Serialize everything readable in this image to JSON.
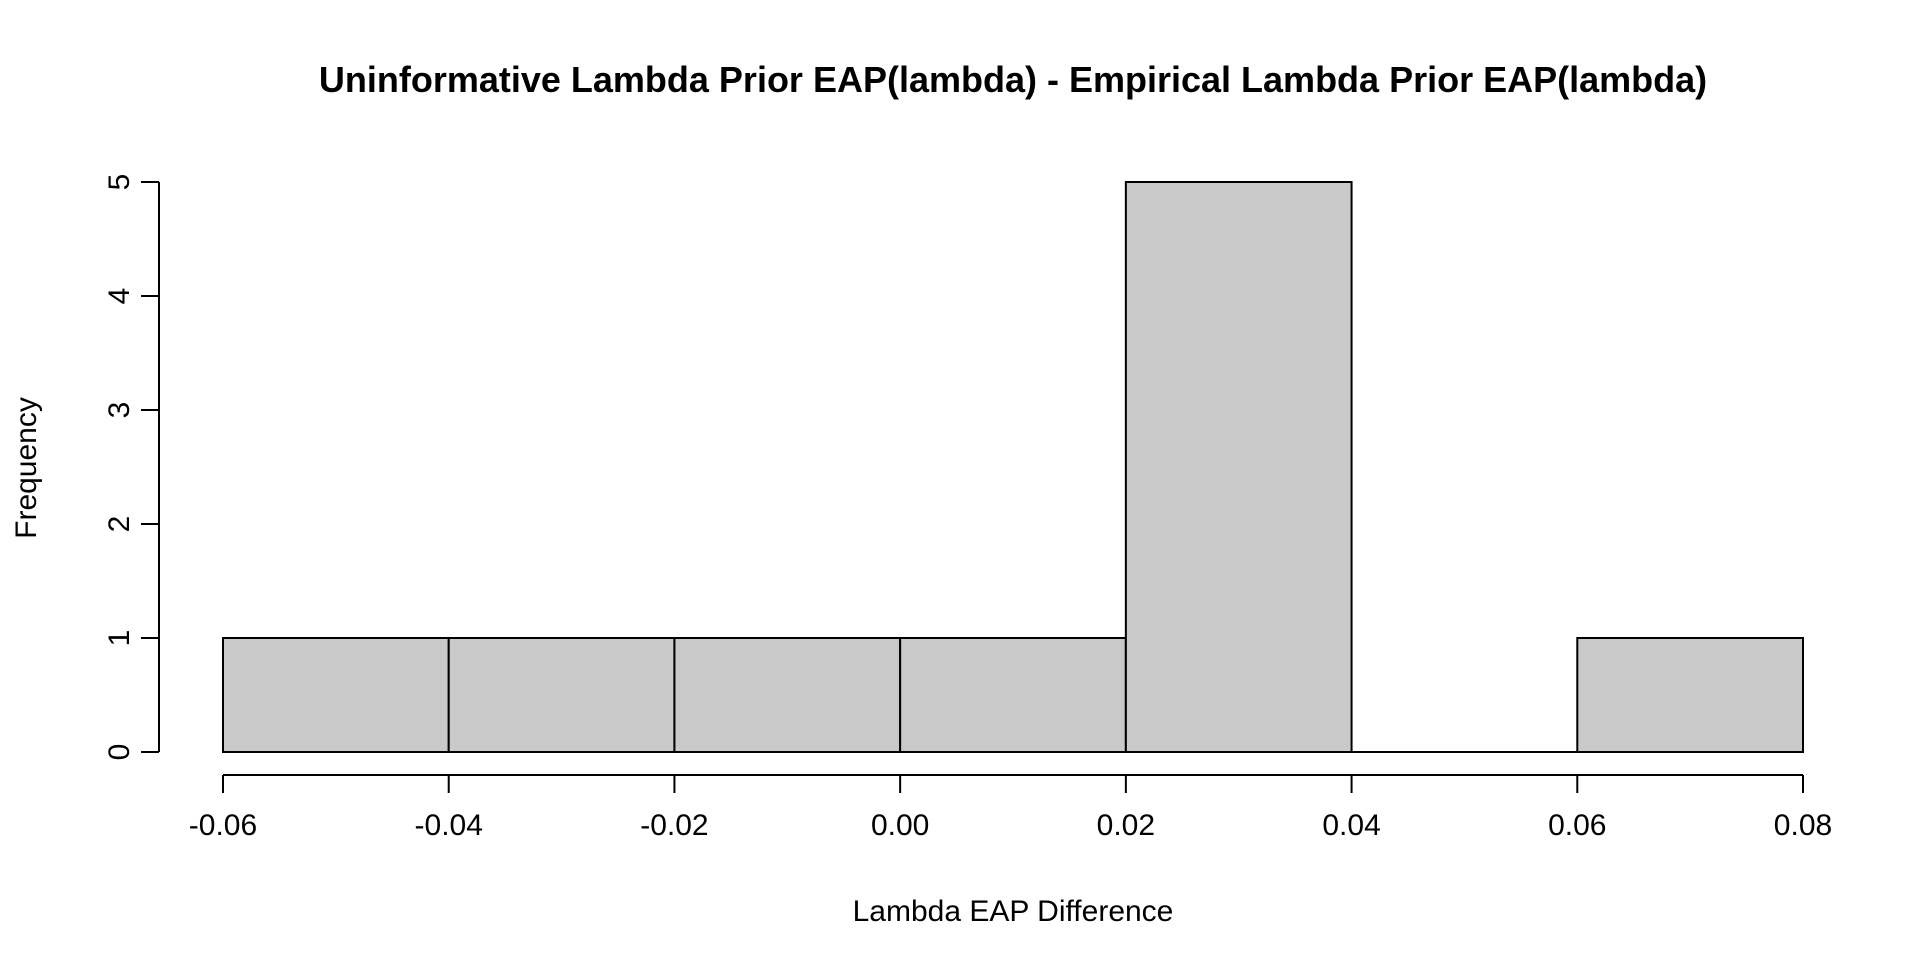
{
  "chart_data": {
    "type": "bar",
    "subtype": "histogram",
    "title": "Uninformative Lambda Prior EAP(lambda) - Empirical Lambda Prior EAP(lambda)",
    "xlabel": "Lambda EAP Difference",
    "ylabel": "Frequency",
    "bins": [
      {
        "from": -0.06,
        "to": -0.04,
        "count": 1
      },
      {
        "from": -0.04,
        "to": -0.02,
        "count": 1
      },
      {
        "from": -0.02,
        "to": 0.0,
        "count": 1
      },
      {
        "from": 0.0,
        "to": 0.02,
        "count": 1
      },
      {
        "from": 0.02,
        "to": 0.04,
        "count": 5
      },
      {
        "from": 0.04,
        "to": 0.06,
        "count": 0
      },
      {
        "from": 0.06,
        "to": 0.08,
        "count": 1
      }
    ],
    "xlim": [
      -0.06,
      0.08
    ],
    "ylim": [
      0,
      5
    ],
    "x_ticks": [
      {
        "value": -0.06,
        "label": "-0.06"
      },
      {
        "value": -0.04,
        "label": "-0.04"
      },
      {
        "value": -0.02,
        "label": "-0.02"
      },
      {
        "value": 0.0,
        "label": "0.00"
      },
      {
        "value": 0.02,
        "label": "0.02"
      },
      {
        "value": 0.04,
        "label": "0.04"
      },
      {
        "value": 0.06,
        "label": "0.06"
      },
      {
        "value": 0.08,
        "label": "0.08"
      }
    ],
    "y_ticks": [
      {
        "value": 0,
        "label": "0"
      },
      {
        "value": 1,
        "label": "1"
      },
      {
        "value": 2,
        "label": "2"
      },
      {
        "value": 3,
        "label": "3"
      },
      {
        "value": 4,
        "label": "4"
      },
      {
        "value": 5,
        "label": "5"
      }
    ],
    "grid": false,
    "bar_color": "#c9c9c9",
    "edge_color": "#000000"
  }
}
